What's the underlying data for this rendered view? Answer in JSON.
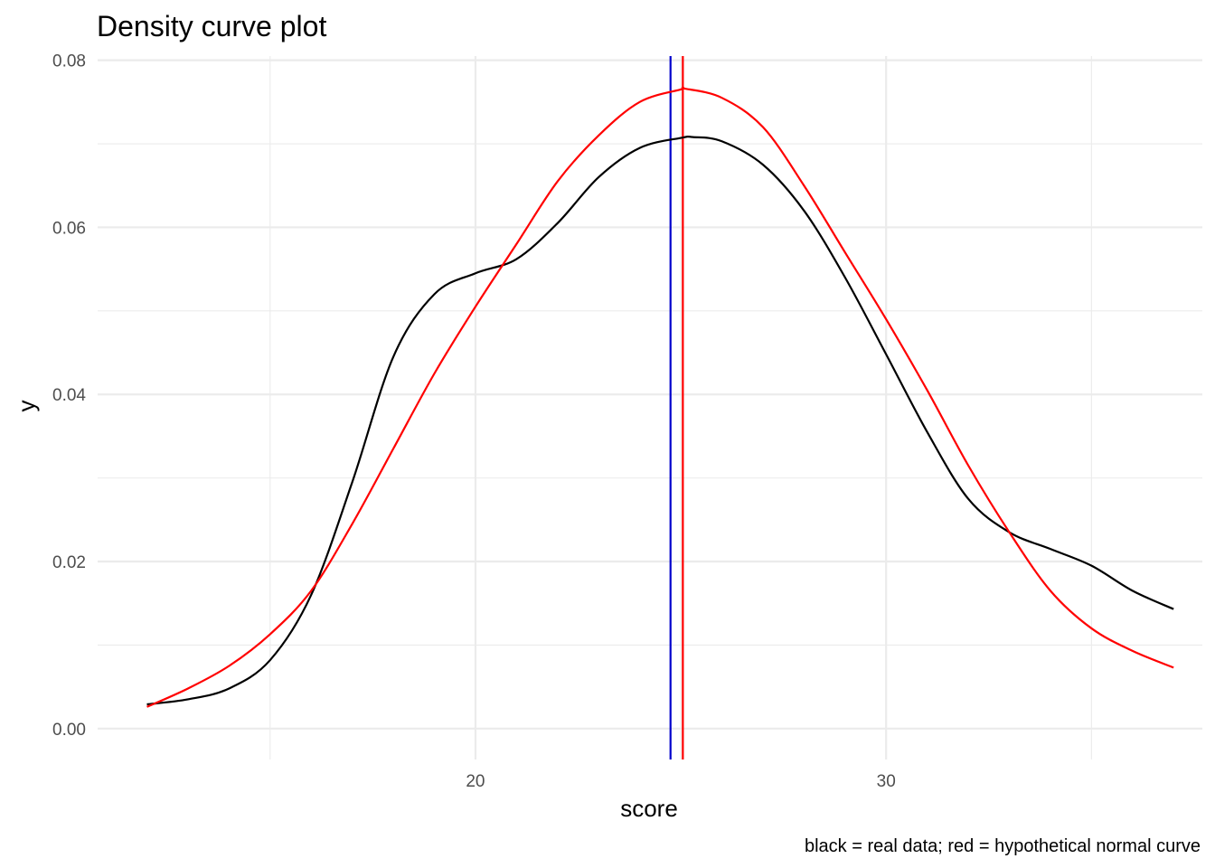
{
  "chart_data": {
    "type": "line",
    "title": "Density curve plot",
    "xlabel": "score",
    "ylabel": "y",
    "caption": "black = real data; red = hypothetical normal curve",
    "xlim": [
      10.8,
      37.7
    ],
    "ylim": [
      -0.0037,
      0.0805
    ],
    "x_ticks": [
      20,
      30
    ],
    "x_tick_labels": [
      "20",
      "30"
    ],
    "x_minor_ticks": [
      15,
      25,
      35
    ],
    "y_ticks": [
      0.0,
      0.02,
      0.04,
      0.06,
      0.08
    ],
    "y_tick_labels": [
      "0.00",
      "0.02",
      "0.04",
      "0.06",
      "0.08"
    ],
    "y_minor_ticks": [
      0.01,
      0.03,
      0.05,
      0.07
    ],
    "grid": true,
    "legend": "none",
    "series": [
      {
        "color": "#000000",
        "x": [
          12,
          13,
          14,
          15,
          16,
          17,
          18,
          19,
          20,
          21,
          22,
          23,
          24,
          25,
          25.3,
          26,
          27,
          28,
          29,
          30,
          31,
          32,
          33,
          34,
          35,
          36,
          37
        ],
        "y": [
          0.0029,
          0.0035,
          0.0048,
          0.0082,
          0.016,
          0.0295,
          0.0445,
          0.052,
          0.0545,
          0.0562,
          0.0605,
          0.066,
          0.0695,
          0.0707,
          0.0708,
          0.0703,
          0.0675,
          0.062,
          0.054,
          0.0448,
          0.0355,
          0.0275,
          0.0235,
          0.0215,
          0.0195,
          0.0165,
          0.0143
        ]
      },
      {
        "color": "#ff0000",
        "x": [
          12,
          13,
          14,
          15,
          16,
          17,
          18,
          19,
          20,
          21,
          22,
          23,
          24,
          25,
          25.1,
          26,
          27,
          28,
          29,
          30,
          31,
          32,
          33,
          34,
          35,
          36,
          37
        ],
        "y": [
          0.0026,
          0.0048,
          0.0075,
          0.0113,
          0.0165,
          0.0245,
          0.0335,
          0.0425,
          0.0505,
          0.058,
          0.0655,
          0.071,
          0.075,
          0.0765,
          0.0766,
          0.0755,
          0.072,
          0.065,
          0.057,
          0.049,
          0.0405,
          0.0315,
          0.0235,
          0.0165,
          0.012,
          0.0093,
          0.0073
        ]
      }
    ],
    "vlines": [
      {
        "x": 24.75,
        "color": "#0000cc"
      },
      {
        "x": 25.05,
        "color": "#ff0000"
      }
    ]
  }
}
